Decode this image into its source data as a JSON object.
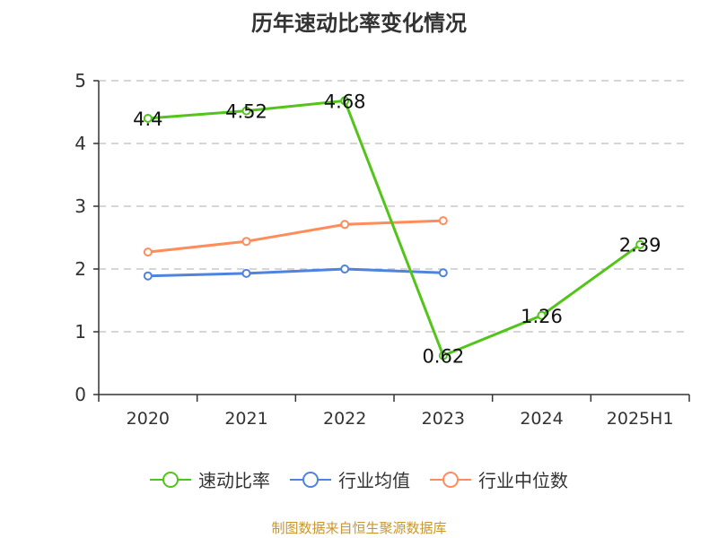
{
  "title": "历年速动比率变化情况",
  "source": "制图数据来自恒生聚源数据库",
  "colors": {
    "series1": "#52c41a",
    "series2": "#4e83e0",
    "series3": "#ff8c5a"
  },
  "chart_data": {
    "type": "line",
    "title": "历年速动比率变化情况",
    "xlabel": "",
    "ylabel": "",
    "ylim": [
      0,
      5
    ],
    "yticks": [
      0,
      1,
      2,
      3,
      4,
      5
    ],
    "grid": true,
    "legend_position": "bottom",
    "categories": [
      "2020",
      "2021",
      "2022",
      "2023",
      "2024",
      "2025H1"
    ],
    "series": [
      {
        "name": "速动比率",
        "values": [
          4.4,
          4.52,
          4.68,
          0.62,
          1.26,
          2.39
        ],
        "labels": [
          "4.4",
          "4.52",
          "4.68",
          "0.62",
          "1.26",
          "2.39"
        ]
      },
      {
        "name": "行业均值",
        "values": [
          1.89,
          1.93,
          2.0,
          1.94,
          null,
          null
        ]
      },
      {
        "name": "行业中位数",
        "values": [
          2.27,
          2.44,
          2.71,
          2.77,
          null,
          null
        ]
      }
    ]
  },
  "legend": [
    {
      "label": "速动比率"
    },
    {
      "label": "行业均值"
    },
    {
      "label": "行业中位数"
    }
  ]
}
